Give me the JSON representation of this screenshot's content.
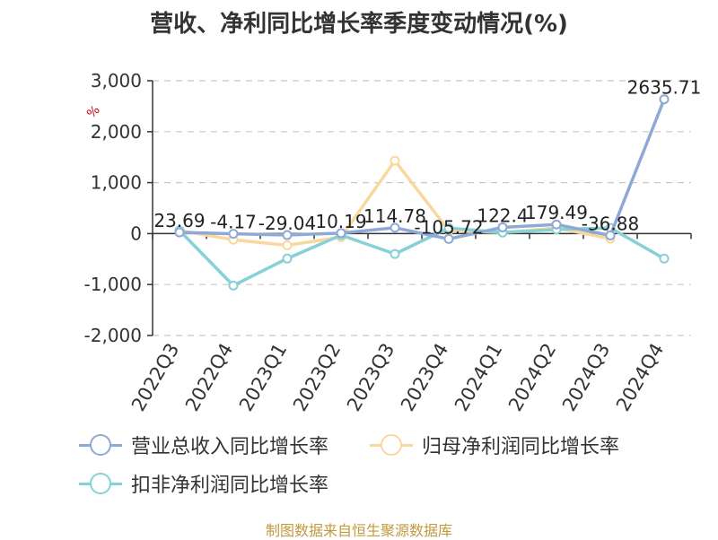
{
  "chart_data": {
    "type": "line",
    "title": "营收、净利同比增长率季度变动情况(%)",
    "unit_label": "%",
    "categories": [
      "2022Q3",
      "2022Q4",
      "2023Q1",
      "2023Q2",
      "2023Q3",
      "2023Q4",
      "2024Q1",
      "2024Q2",
      "2024Q3",
      "2024Q4"
    ],
    "y_ticks": [
      "3,000",
      "2,000",
      "1,000",
      "0",
      "-1,000",
      "-2,000"
    ],
    "ylim": [
      -2000,
      3000
    ],
    "grid": true,
    "legend_position": "bottom",
    "series": [
      {
        "name": "营业总收入同比增长率",
        "color": "#8fa9d6",
        "values": [
          23.69,
          -4.17,
          -29.04,
          10.19,
          114.78,
          -105.72,
          122.4,
          179.49,
          -36.88,
          2635.71
        ],
        "labels": [
          "23.69",
          "-4.17",
          "-29.04",
          "10.19",
          "114.78",
          "-105.72",
          "122.4",
          "179.49",
          "-36.88",
          "2635.71"
        ]
      },
      {
        "name": "归母净利润同比增长率",
        "color": "#f9d89f",
        "values": [
          60,
          -120,
          -230,
          -70,
          1430,
          60,
          20,
          110,
          -100,
          null
        ]
      },
      {
        "name": "扣非净利润同比增长率",
        "color": "#86d1d6",
        "values": [
          60,
          -1020,
          -490,
          -30,
          -400,
          110,
          20,
          80,
          110,
          -490
        ]
      }
    ],
    "source": "制图数据来自恒生聚源数据库"
  }
}
